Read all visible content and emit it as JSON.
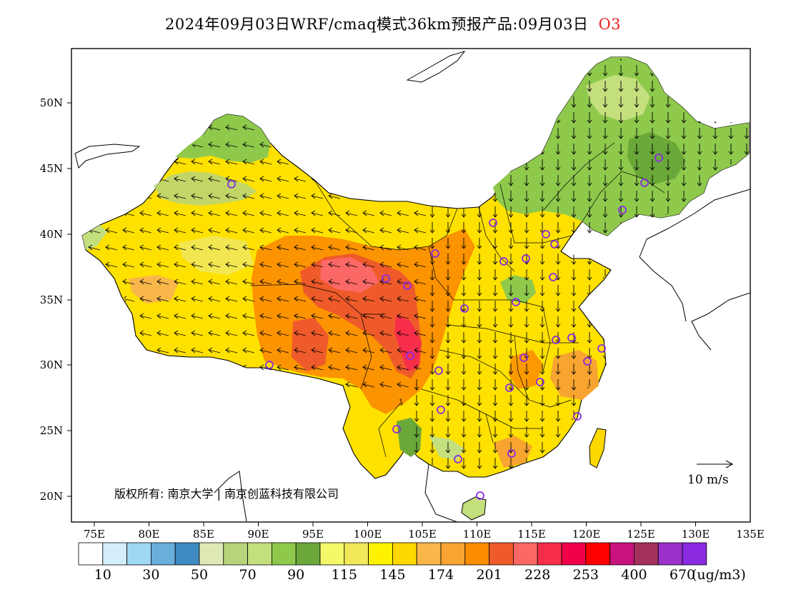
{
  "title": {
    "main": "2024年09月03日WRF/cmaq模式36km预报产品:09月03日",
    "pollutant": "O3"
  },
  "map": {
    "lat_ticks": [
      "50N",
      "45N",
      "40N",
      "35N",
      "30N",
      "25N",
      "20N"
    ],
    "lon_ticks": [
      "75E",
      "80E",
      "85E",
      "90E",
      "95E",
      "100E",
      "105E",
      "110E",
      "115E",
      "120E",
      "125E",
      "130E",
      "135E"
    ],
    "credit": "版权所有: 南京大学 | 南京创蓝科技有限公司",
    "wind_scale_label": "10  m/s"
  },
  "colorbar": {
    "colors": [
      "#ffffff",
      "#d5eefb",
      "#9fd8f3",
      "#6aaedc",
      "#3f8ac2",
      "#dfe9b6",
      "#b7d47a",
      "#c4df7d",
      "#8ec94c",
      "#6aa83a",
      "#f4f869",
      "#f1e85a",
      "#fff200",
      "#ffd800",
      "#f9b74a",
      "#f7a530",
      "#fc8c00",
      "#ee5a2a",
      "#fc6866",
      "#f72d4a",
      "#f00048",
      "#ff0000",
      "#c8127c",
      "#a3305b",
      "#9b31c8",
      "#8a2be2"
    ],
    "labels": [
      "10",
      "30",
      "50",
      "70",
      "90",
      "115",
      "145",
      "174",
      "201",
      "228",
      "253",
      "400",
      "670"
    ],
    "unit": "(ug/m3)"
  },
  "colors": {
    "station_marker": "#8a2be2",
    "title_pollutant": "#e8201e"
  }
}
